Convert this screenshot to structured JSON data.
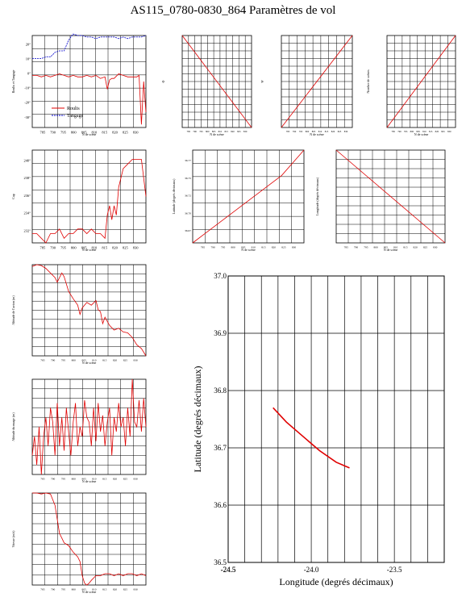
{
  "page_title": "AS115_0780-0830_864   Paramètres de vol",
  "colors": {
    "red": "#e00000",
    "blue": "#0000cc",
    "grid": "#000000"
  },
  "chart_data": [
    {
      "id": "roulis-tangage",
      "type": "line",
      "xlabel": "N de scène",
      "ylabel": "Roulis et Tangage",
      "x_ticks": [
        "785",
        "790",
        "795",
        "800",
        "805",
        "810",
        "815",
        "820",
        "825",
        "830"
      ],
      "xlim": [
        780,
        830
      ],
      "y_ticks": [
        "20°",
        "10°",
        "0°",
        "-10°",
        "-20°",
        "-30°"
      ],
      "ylim": [
        -35,
        25
      ],
      "grid": true,
      "legend": {
        "placement": "bottom-left",
        "entries": [
          "Roulis",
          "Tangage"
        ]
      },
      "series": [
        {
          "name": "Roulis",
          "color": "#e00000",
          "x": [
            780,
            782,
            784,
            786,
            788,
            790,
            792,
            794,
            796,
            798,
            800,
            802,
            804,
            806,
            808,
            810,
            812,
            813,
            814,
            815,
            816,
            818,
            820,
            822,
            824,
            826,
            827,
            828,
            829,
            830
          ],
          "y": [
            -1,
            -1,
            -2,
            -1,
            -2,
            -1,
            0,
            -1,
            -2,
            -1,
            -2,
            -2,
            -1,
            -2,
            -1,
            -3,
            -2,
            -10,
            -4,
            -3,
            -3,
            0,
            -1,
            -2,
            -2,
            -2,
            -1,
            -33,
            -5,
            -25
          ]
        },
        {
          "name": "Tangage",
          "color": "#0000cc",
          "x": [
            780,
            782,
            784,
            786,
            788,
            790,
            792,
            794,
            796,
            798,
            800,
            802,
            804,
            806,
            808,
            810,
            812,
            814,
            816,
            818,
            820,
            822,
            824,
            826,
            828,
            830
          ],
          "y": [
            10,
            10,
            10,
            11,
            11,
            14,
            15,
            15,
            22,
            26,
            25,
            25,
            24,
            24,
            23,
            24,
            24,
            24,
            24,
            23,
            24,
            23,
            24,
            24,
            24,
            25
          ]
        }
      ]
    },
    {
      "id": "phi-panel",
      "type": "line",
      "xlabel": "N de scène",
      "ylabel": "Φ",
      "x_ticks": [
        "785",
        "790",
        "795",
        "800",
        "805",
        "810",
        "815",
        "820",
        "825",
        "830"
      ],
      "xlim": [
        780,
        830
      ],
      "y_ticks": [
        "",
        "",
        "",
        "",
        "",
        ""
      ],
      "series": [
        {
          "color": "#e00000",
          "x": [
            780,
            830
          ],
          "y": [
            1,
            0
          ]
        }
      ]
    },
    {
      "id": "psi-panel",
      "type": "line",
      "xlabel": "N de scène",
      "ylabel": "Ψ",
      "x_ticks": [
        "785",
        "790",
        "795",
        "800",
        "805",
        "810",
        "815",
        "820",
        "825",
        "830"
      ],
      "xlim": [
        780,
        830
      ],
      "y_ticks": [
        "",
        "",
        "",
        "",
        "",
        ""
      ],
      "series": [
        {
          "color": "#e00000",
          "x": [
            780,
            830
          ],
          "y": [
            0,
            1
          ]
        }
      ]
    },
    {
      "id": "omega-panel",
      "type": "line",
      "xlabel": "N de scène",
      "ylabel": "Nombre de scènes",
      "x_ticks": [
        "785",
        "790",
        "795",
        "800",
        "805",
        "810",
        "815",
        "820",
        "825",
        "830"
      ],
      "xlim": [
        780,
        830
      ],
      "y_ticks": [
        "",
        "",
        "",
        "",
        "",
        ""
      ],
      "series": [
        {
          "color": "#e00000",
          "x": [
            780,
            830
          ],
          "y": [
            0,
            1
          ]
        }
      ]
    },
    {
      "id": "cap",
      "type": "line",
      "xlabel": "N de scène",
      "ylabel": "Cap",
      "x_ticks": [
        "785",
        "790",
        "795",
        "800",
        "805",
        "810",
        "815",
        "820",
        "825",
        "830"
      ],
      "xlim": [
        780,
        830
      ],
      "y_ticks": [
        "240°",
        "238°",
        "236°",
        "234°",
        "232°"
      ],
      "ylim": [
        231,
        241
      ],
      "series": [
        {
          "color": "#e00000",
          "x": [
            780,
            782,
            784,
            786,
            788,
            790,
            792,
            794,
            796,
            798,
            800,
            802,
            804,
            806,
            808,
            810,
            812,
            813,
            814,
            815,
            816,
            817,
            818,
            819,
            820,
            822,
            824,
            826,
            828,
            830
          ],
          "y": [
            232,
            232,
            231.5,
            231,
            232,
            232,
            232.5,
            231.5,
            232,
            232,
            232.5,
            232.5,
            232,
            232.5,
            232,
            232,
            231.5,
            234,
            235,
            233.5,
            235,
            234,
            237,
            238,
            239,
            239.5,
            240,
            240,
            240,
            236
          ]
        }
      ]
    },
    {
      "id": "latitude",
      "type": "line",
      "xlabel": "N de scène",
      "ylabel": "Latitude (degrés décimaux)",
      "x_ticks": [
        "785",
        "790",
        "795",
        "800",
        "805",
        "810",
        "815",
        "820",
        "825",
        "830"
      ],
      "xlim": [
        780,
        830
      ],
      "y_ticks": [
        "36.77",
        "36.75",
        "36.72",
        "36.70",
        "36.67"
      ],
      "series": [
        {
          "color": "#e00000",
          "x": [
            780,
            790,
            800,
            810,
            820,
            830
          ],
          "y": [
            36.665,
            36.685,
            36.705,
            36.725,
            36.745,
            36.775
          ]
        }
      ]
    },
    {
      "id": "longitude",
      "type": "line",
      "xlabel": "N de scène",
      "ylabel": "Longitude (degrés décimaux)",
      "x_ticks": [
        "785",
        "790",
        "795",
        "800",
        "805",
        "810",
        "815",
        "820",
        "825",
        "830"
      ],
      "xlim": [
        780,
        830
      ],
      "y_ticks": [
        "",
        "",
        "",
        "",
        "",
        "",
        "",
        "",
        "",
        ""
      ],
      "series": [
        {
          "color": "#e00000",
          "x": [
            780,
            830
          ],
          "y": [
            1,
            0
          ]
        }
      ]
    },
    {
      "id": "altitude-avion",
      "type": "line",
      "xlabel": "N de scène",
      "ylabel": "Altitude de l'avion (m)",
      "x_ticks": [
        "785",
        "790",
        "795",
        "800",
        "805",
        "810",
        "815",
        "820",
        "825",
        "830"
      ],
      "xlim": [
        780,
        830
      ],
      "y_ticks": [
        "",
        "",
        "",
        "",
        "",
        "",
        "",
        "",
        "",
        ""
      ],
      "series": [
        {
          "color": "#e00000",
          "x": [
            780,
            782,
            784,
            786,
            788,
            790,
            791,
            792,
            793,
            794,
            796,
            798,
            800,
            801,
            802,
            804,
            806,
            808,
            809,
            810,
            811,
            812,
            814,
            816,
            818,
            820,
            822,
            824,
            826,
            828,
            830
          ],
          "y": [
            0.97,
            0.99,
            0.98,
            0.95,
            0.9,
            0.85,
            0.8,
            0.85,
            0.9,
            0.86,
            0.7,
            0.62,
            0.55,
            0.45,
            0.52,
            0.58,
            0.55,
            0.6,
            0.5,
            0.48,
            0.35,
            0.42,
            0.33,
            0.28,
            0.3,
            0.26,
            0.25,
            0.2,
            0.12,
            0.08,
            0.0
          ]
        }
      ]
    },
    {
      "id": "altitude-nuage",
      "type": "line",
      "xlabel": "N de scène",
      "ylabel": "Altitude du nuage (m)",
      "x_ticks": [
        "785",
        "790",
        "795",
        "800",
        "805",
        "810",
        "815",
        "820",
        "825",
        "830"
      ],
      "xlim": [
        780,
        830
      ],
      "y_ticks": [
        "",
        "",
        "",
        "",
        "",
        "",
        "",
        "",
        "",
        ""
      ],
      "series": [
        {
          "color": "#e00000",
          "x": [
            780,
            781,
            782,
            783,
            784,
            785,
            786,
            787,
            788,
            789,
            790,
            791,
            792,
            793,
            794,
            795,
            796,
            797,
            798,
            799,
            800,
            801,
            802,
            803,
            804,
            805,
            806,
            807,
            808,
            809,
            810,
            811,
            812,
            813,
            814,
            815,
            816,
            817,
            818,
            819,
            820,
            821,
            822,
            823,
            824,
            825,
            826,
            827,
            828,
            829,
            830
          ],
          "y": [
            0.2,
            0.4,
            0.1,
            0.5,
            0.0,
            0.4,
            0.6,
            0.3,
            0.7,
            0.55,
            0.2,
            0.75,
            0.3,
            0.6,
            0.25,
            0.7,
            0.45,
            0.2,
            0.55,
            0.75,
            0.3,
            0.5,
            0.4,
            0.78,
            0.6,
            0.55,
            0.3,
            0.7,
            0.35,
            0.75,
            0.45,
            0.62,
            0.3,
            0.55,
            0.7,
            0.2,
            0.6,
            0.45,
            0.75,
            0.5,
            0.6,
            0.3,
            0.7,
            0.4,
            1.0,
            0.55,
            0.5,
            0.78,
            0.45,
            0.8,
            0.5
          ]
        }
      ]
    },
    {
      "id": "vitesse-sol",
      "type": "line",
      "xlabel": "N de scène",
      "ylabel": "Vitesse (m/s)",
      "x_ticks": [
        "785",
        "790",
        "795",
        "800",
        "805",
        "810",
        "815",
        "820",
        "825",
        "830"
      ],
      "xlim": [
        780,
        830
      ],
      "y_ticks": [
        "",
        "",
        "",
        "",
        "",
        "",
        "",
        "",
        ""
      ],
      "series": [
        {
          "color": "#e00000",
          "x": [
            780,
            782,
            784,
            786,
            788,
            790,
            791,
            792,
            793,
            794,
            796,
            798,
            800,
            801,
            802,
            803,
            804,
            805,
            806,
            808,
            810,
            812,
            814,
            816,
            818,
            820,
            822,
            824,
            826,
            828,
            830
          ],
          "y": [
            0.98,
            0.98,
            0.97,
            0.98,
            0.97,
            0.85,
            0.7,
            0.55,
            0.5,
            0.45,
            0.42,
            0.35,
            0.3,
            0.25,
            0.1,
            0.02,
            0.0,
            0.02,
            0.05,
            0.1,
            0.1,
            0.12,
            0.12,
            0.1,
            0.12,
            0.1,
            0.12,
            0.12,
            0.1,
            0.12,
            0.1
          ]
        }
      ]
    },
    {
      "id": "trajectoire",
      "type": "line",
      "xlabel": "Longitude (degrés décimaux)",
      "ylabel": "Latitude (degrés décimaux)",
      "x_ticks": [
        "-24.5",
        "-24.0",
        "-23.5"
      ],
      "xlim": [
        -24.5,
        -23.2
      ],
      "y_ticks": [
        "37.0",
        "36.9",
        "36.8",
        "36.7",
        "36.6",
        "36.5"
      ],
      "ylim": [
        36.5,
        37.0
      ],
      "series": [
        {
          "color": "#e00000",
          "x": [
            -24.23,
            -24.15,
            -24.05,
            -23.95,
            -23.85,
            -23.77
          ],
          "y": [
            36.77,
            36.745,
            36.72,
            36.695,
            36.675,
            36.665
          ]
        }
      ]
    }
  ]
}
